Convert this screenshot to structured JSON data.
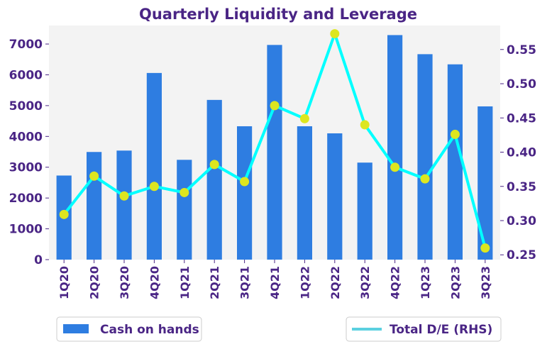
{
  "chart_data": {
    "type": "bar",
    "title": "Quarterly Liquidity and Leverage",
    "categories": [
      "1Q20",
      "2Q20",
      "3Q20",
      "4Q20",
      "1Q21",
      "2Q21",
      "3Q21",
      "4Q21",
      "1Q22",
      "2Q22",
      "3Q22",
      "4Q22",
      "1Q23",
      "2Q23",
      "3Q23"
    ],
    "series": [
      {
        "name": "Cash on hands",
        "type": "bar",
        "axis": "left",
        "color": "#2e7de1",
        "values": [
          2730,
          3495,
          3540,
          6060,
          3240,
          5185,
          4330,
          6970,
          4330,
          4100,
          3150,
          7290,
          6670,
          6340,
          4975
        ]
      },
      {
        "name": "Total D/E (RHS)",
        "type": "line",
        "axis": "right",
        "color": "#00ffff",
        "marker_color": "#dde61f",
        "values": [
          0.309,
          0.365,
          0.336,
          0.35,
          0.341,
          0.382,
          0.357,
          0.468,
          0.449,
          0.573,
          0.44,
          0.378,
          0.361,
          0.426,
          0.26
        ]
      }
    ],
    "left_axis": {
      "ylim": [
        0,
        7600
      ],
      "ticks": [
        "0",
        "1000",
        "2000",
        "3000",
        "4000",
        "5000",
        "6000",
        "7000"
      ]
    },
    "right_axis": {
      "ylim": [
        0.243,
        0.585
      ],
      "ticks": [
        "0.25",
        "0.30",
        "0.35",
        "0.40",
        "0.45",
        "0.50",
        "0.55"
      ]
    },
    "legend": [
      {
        "label": "Cash on hands",
        "position": "bottom-left"
      },
      {
        "label": "Total D/E (RHS)",
        "position": "bottom-right"
      }
    ],
    "grid": false
  }
}
